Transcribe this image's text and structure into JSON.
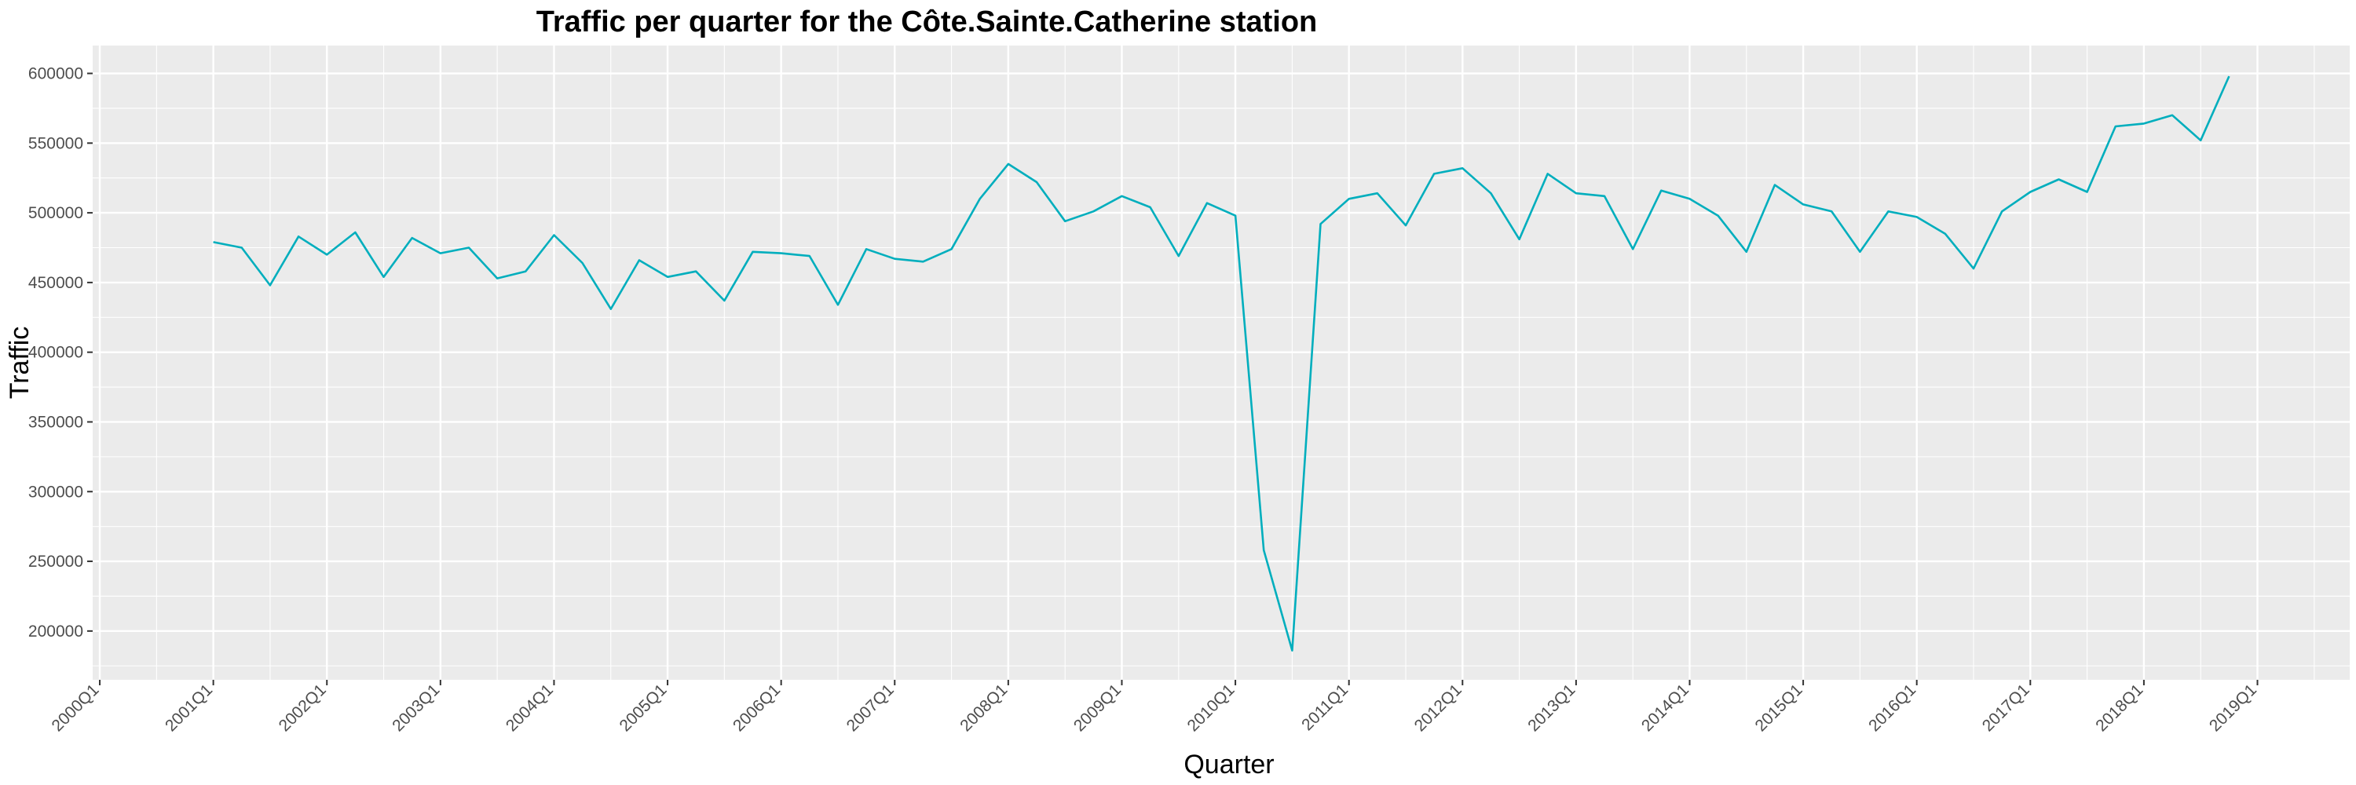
{
  "chart_data": {
    "type": "line",
    "title": "Traffic per quarter for the Côte.Sainte.Catherine station",
    "xlabel": "Quarter",
    "ylabel": "Traffic",
    "xlim": [
      "2000Q1",
      "2019Q4"
    ],
    "ylim": [
      165000,
      620000
    ],
    "grid": true,
    "legend": "none",
    "line_color": "#00aebd",
    "panel_color": "#ebebeb",
    "grid_color": "#ffffff",
    "x_tick_labels": [
      "2000Q1",
      "2001Q1",
      "2002Q1",
      "2003Q1",
      "2004Q1",
      "2005Q1",
      "2006Q1",
      "2007Q1",
      "2008Q1",
      "2009Q1",
      "2010Q1",
      "2011Q1",
      "2012Q1",
      "2013Q1",
      "2014Q1",
      "2015Q1",
      "2016Q1",
      "2017Q1",
      "2018Q1",
      "2019Q1"
    ],
    "y_ticks": [
      200000,
      250000,
      300000,
      350000,
      400000,
      450000,
      500000,
      550000,
      600000
    ],
    "y_tick_labels": [
      "200000",
      "250000",
      "300000",
      "350000",
      "400000",
      "450000",
      "500000",
      "550000",
      "600000"
    ],
    "series": [
      {
        "x_start": "2001Q1",
        "values": [
          479000,
          475000,
          448000,
          483000,
          470000,
          486000,
          454000,
          482000,
          471000,
          475000,
          453000,
          458000,
          484000,
          464000,
          431000,
          466000,
          454000,
          458000,
          437000,
          472000,
          471000,
          469000,
          434000,
          474000,
          467000,
          465000,
          474000,
          510000,
          535000,
          522000,
          494000,
          501000,
          512000,
          504000,
          469000,
          507000,
          498000,
          258000,
          186000,
          492000,
          510000,
          514000,
          491000,
          528000,
          532000,
          514000,
          481000,
          528000,
          514000,
          512000,
          474000,
          516000,
          510000,
          498000,
          472000,
          520000,
          506000,
          501000,
          472000,
          501000,
          497000,
          485000,
          460000,
          501000,
          515000,
          524000,
          515000,
          562000,
          564000,
          570000,
          552000,
          598000
        ]
      }
    ]
  }
}
